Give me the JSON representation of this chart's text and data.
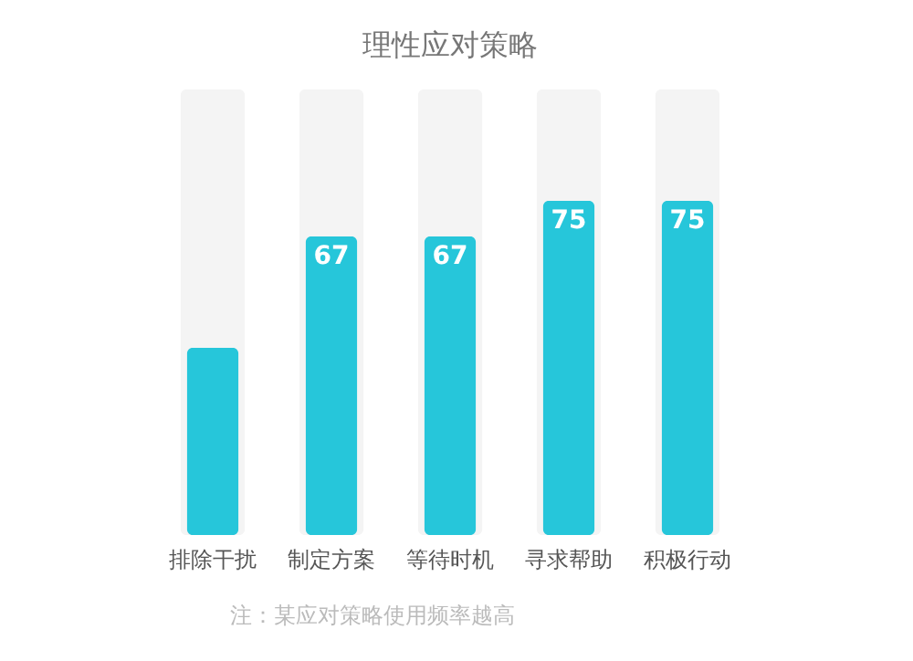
{
  "chart_data": {
    "type": "bar",
    "title": "理性应对策略",
    "categories": [
      "排除干扰",
      "制定方案",
      "等待时机",
      "寻求帮助",
      "积极行动"
    ],
    "values": [
      42,
      67,
      67,
      75,
      75
    ],
    "value_labels": [
      null,
      "67",
      "67",
      "75",
      "75"
    ],
    "color": "#26c6da",
    "ylim": [
      0,
      100
    ],
    "annotations": [
      "注：某应对策略使用频率越高"
    ]
  }
}
